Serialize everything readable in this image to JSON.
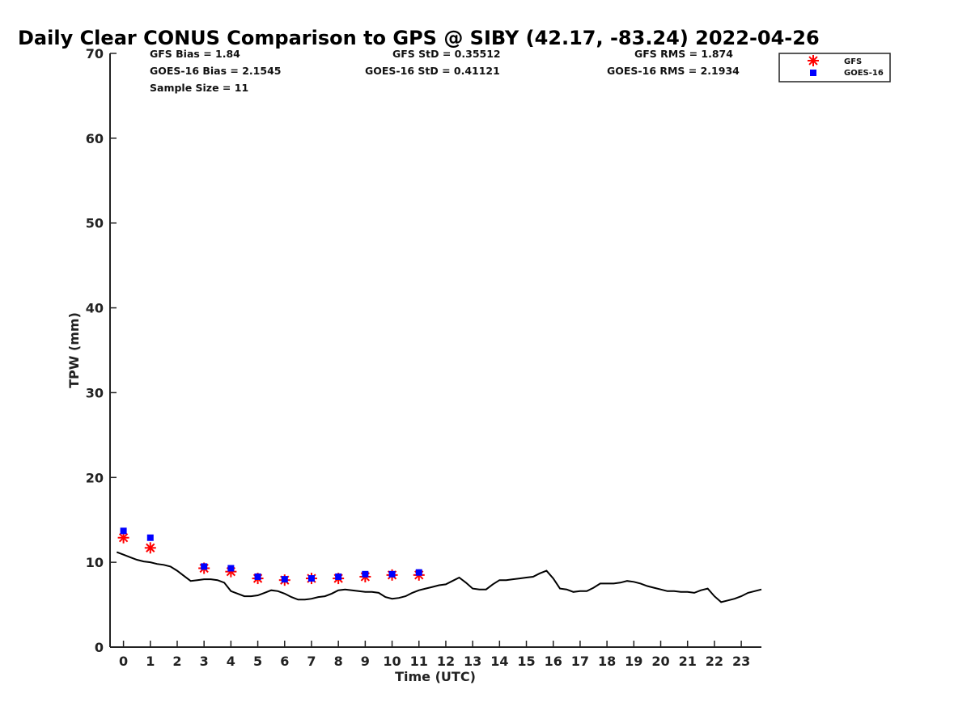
{
  "chart_data": {
    "type": "scatter",
    "title": "Daily Clear CONUS Comparison to GPS @ SIBY (42.17, -83.24) 2022-04-26",
    "xlabel": "Time (UTC)",
    "ylabel": "TPW (mm)",
    "xlim": [
      -0.5,
      23.75
    ],
    "ylim": [
      0,
      70
    ],
    "xticks": [
      0,
      1,
      2,
      3,
      4,
      5,
      6,
      7,
      8,
      9,
      10,
      11,
      12,
      13,
      14,
      15,
      16,
      17,
      18,
      19,
      20,
      21,
      22,
      23
    ],
    "yticks": [
      0,
      10,
      20,
      30,
      40,
      50,
      60,
      70
    ],
    "grid": false,
    "legend_position": "top-right",
    "stats": [
      "GFS Bias = 1.84",
      "GFS StD = 0.35512",
      "GFS RMS = 1.874",
      "GOES-16 Bias = 2.1545",
      "GOES-16 StD = 0.41121",
      "GOES-16 RMS = 2.1934",
      "Sample Size = 11"
    ],
    "series": [
      {
        "name": "GFS",
        "marker": "asterisk",
        "color": "#ff0000",
        "x": [
          0,
          1,
          3,
          4,
          5,
          6,
          7,
          8,
          9,
          10,
          11
        ],
        "y": [
          12.9,
          11.7,
          9.3,
          8.9,
          8.1,
          7.9,
          8.1,
          8.1,
          8.3,
          8.5,
          8.5
        ]
      },
      {
        "name": "GOES-16",
        "marker": "square",
        "color": "#0000ff",
        "x": [
          0,
          1,
          3,
          4,
          5,
          6,
          7,
          8,
          9,
          10,
          11
        ],
        "y": [
          13.7,
          12.9,
          9.5,
          9.3,
          8.3,
          8.0,
          8.1,
          8.3,
          8.6,
          8.6,
          8.8
        ]
      },
      {
        "name": "",
        "marker": "line",
        "color": "#000000",
        "x": [
          -0.25,
          0,
          0.25,
          0.5,
          0.75,
          1,
          1.25,
          1.5,
          1.75,
          2,
          2.25,
          2.5,
          2.75,
          3,
          3.25,
          3.5,
          3.75,
          4,
          4.25,
          4.5,
          4.75,
          5,
          5.25,
          5.5,
          5.75,
          6,
          6.25,
          6.5,
          6.75,
          7,
          7.25,
          7.5,
          7.75,
          8,
          8.25,
          8.5,
          8.75,
          9,
          9.25,
          9.5,
          9.75,
          10,
          10.25,
          10.5,
          10.75,
          11,
          11.25,
          11.5,
          11.75,
          12,
          12.25,
          12.5,
          12.75,
          13,
          13.25,
          13.5,
          13.75,
          14,
          14.25,
          14.5,
          14.75,
          15,
          15.25,
          15.5,
          15.75,
          16,
          16.25,
          16.5,
          16.75,
          17,
          17.25,
          17.5,
          17.75,
          18,
          18.25,
          18.5,
          18.75,
          19,
          19.25,
          19.5,
          19.75,
          20,
          20.25,
          20.5,
          20.75,
          21,
          21.25,
          21.5,
          21.75,
          22,
          22.25,
          22.5,
          22.75,
          23,
          23.25,
          23.5,
          23.75
        ],
        "y": [
          11.2,
          10.9,
          10.6,
          10.3,
          10.1,
          10.0,
          9.8,
          9.7,
          9.5,
          9.0,
          8.4,
          7.8,
          7.9,
          8.0,
          8.0,
          7.9,
          7.6,
          6.6,
          6.3,
          6.0,
          6.0,
          6.1,
          6.4,
          6.7,
          6.6,
          6.3,
          5.9,
          5.6,
          5.6,
          5.7,
          5.9,
          6.0,
          6.3,
          6.7,
          6.8,
          6.7,
          6.6,
          6.5,
          6.5,
          6.4,
          5.9,
          5.7,
          5.8,
          6.0,
          6.4,
          6.7,
          6.9,
          7.1,
          7.3,
          7.4,
          7.8,
          8.2,
          7.6,
          6.9,
          6.8,
          6.8,
          7.4,
          7.9,
          7.9,
          8.0,
          8.1,
          8.2,
          8.3,
          8.7,
          9.0,
          8.1,
          6.9,
          6.8,
          6.5,
          6.6,
          6.6,
          7.0,
          7.5,
          7.5,
          7.5,
          7.6,
          7.8,
          7.7,
          7.5,
          7.2,
          7.0,
          6.8,
          6.6,
          6.6,
          6.5,
          6.5,
          6.4,
          6.7,
          6.9,
          6.0,
          5.3,
          5.5,
          5.7,
          6.0,
          6.4,
          6.6,
          6.8
        ]
      }
    ]
  }
}
